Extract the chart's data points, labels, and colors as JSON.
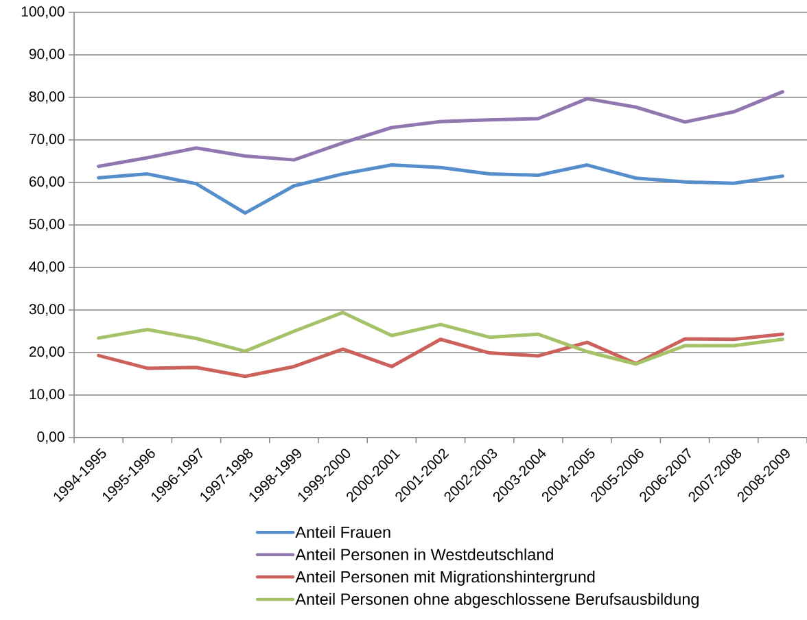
{
  "chart_data": {
    "type": "line",
    "categories": [
      "1994-1995",
      "1995-1996",
      "1996-1997",
      "1997-1998",
      "1998-1999",
      "1999-2000",
      "2000-2001",
      "2001-2002",
      "2002-2003",
      "2003-2004",
      "2004-2005",
      "2005-2006",
      "2006-2007",
      "2007-2008",
      "2008-2009"
    ],
    "series": [
      {
        "name": "Anteil Frauen",
        "color": "#558ECB",
        "values": [
          61.1,
          62.0,
          59.7,
          52.8,
          59.2,
          62.0,
          64.1,
          63.5,
          62.0,
          61.7,
          64.1,
          61.0,
          60.1,
          59.8,
          61.5
        ]
      },
      {
        "name": "Anteil Personen in Westdeutschland",
        "color": "#9177B0",
        "values": [
          63.8,
          65.8,
          68.1,
          66.2,
          65.3,
          69.3,
          72.9,
          74.3,
          74.7,
          75.0,
          79.7,
          77.7,
          74.2,
          76.6,
          81.3
        ]
      },
      {
        "name": "Anteil Personen mit Migrationshintergrund",
        "color": "#CB615A",
        "values": [
          19.3,
          16.3,
          16.5,
          14.4,
          16.7,
          20.8,
          16.7,
          23.1,
          19.9,
          19.2,
          22.4,
          17.4,
          23.2,
          23.1,
          24.3
        ]
      },
      {
        "name": "Anteil Personen ohne abgeschlossene Berufsausbildung",
        "color": "#A6C268",
        "values": [
          23.4,
          25.4,
          23.3,
          20.3,
          25.0,
          29.4,
          24.0,
          26.6,
          23.6,
          24.3,
          20.2,
          17.3,
          21.6,
          21.6,
          23.1
        ]
      }
    ],
    "ylim": [
      0,
      100
    ],
    "yticks": [
      {
        "value": 0,
        "label": "0,00"
      },
      {
        "value": 10,
        "label": "10,00"
      },
      {
        "value": 20,
        "label": "20,00"
      },
      {
        "value": 30,
        "label": "30,00"
      },
      {
        "value": 40,
        "label": "40,00"
      },
      {
        "value": 50,
        "label": "50,00"
      },
      {
        "value": 60,
        "label": "60,00"
      },
      {
        "value": 70,
        "label": "70,00"
      },
      {
        "value": 80,
        "label": "80,00"
      },
      {
        "value": 90,
        "label": "90,00"
      },
      {
        "value": 100,
        "label": "100,00"
      }
    ],
    "grid": "y",
    "legend": "bottom"
  }
}
